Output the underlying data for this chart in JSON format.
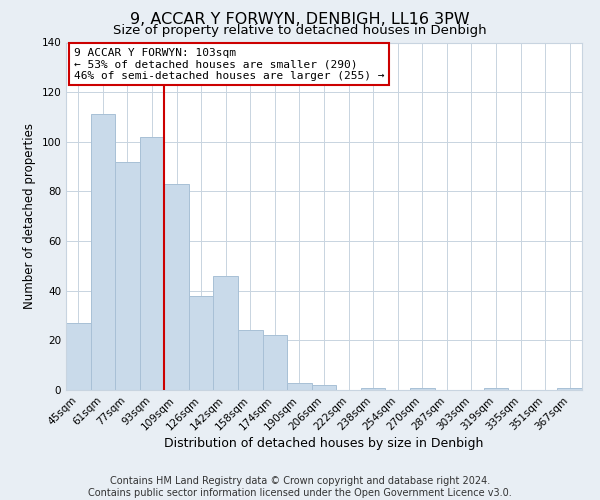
{
  "title": "9, ACCAR Y FORWYN, DENBIGH, LL16 3PW",
  "subtitle": "Size of property relative to detached houses in Denbigh",
  "xlabel": "Distribution of detached houses by size in Denbigh",
  "ylabel": "Number of detached properties",
  "bar_labels": [
    "45sqm",
    "61sqm",
    "77sqm",
    "93sqm",
    "109sqm",
    "126sqm",
    "142sqm",
    "158sqm",
    "174sqm",
    "190sqm",
    "206sqm",
    "222sqm",
    "238sqm",
    "254sqm",
    "270sqm",
    "287sqm",
    "303sqm",
    "319sqm",
    "335sqm",
    "351sqm",
    "367sqm"
  ],
  "bar_values": [
    27,
    111,
    92,
    102,
    83,
    38,
    46,
    24,
    22,
    3,
    2,
    0,
    1,
    0,
    1,
    0,
    0,
    1,
    0,
    0,
    1
  ],
  "bar_color": "#c9daea",
  "bar_edgecolor": "#a8c0d6",
  "red_line_index": 4,
  "ylim": [
    0,
    140
  ],
  "yticks": [
    0,
    20,
    40,
    60,
    80,
    100,
    120,
    140
  ],
  "annotation_title": "9 ACCAR Y FORWYN: 103sqm",
  "annotation_line1": "← 53% of detached houses are smaller (290)",
  "annotation_line2": "46% of semi-detached houses are larger (255) →",
  "annotation_box_color": "#ffffff",
  "annotation_box_edgecolor": "#cc0000",
  "footer_line1": "Contains HM Land Registry data © Crown copyright and database right 2024.",
  "footer_line2": "Contains public sector information licensed under the Open Government Licence v3.0.",
  "background_color": "#e8eef4",
  "plot_background_color": "#ffffff",
  "grid_color": "#c8d4e0",
  "title_fontsize": 11.5,
  "subtitle_fontsize": 9.5,
  "xlabel_fontsize": 9,
  "ylabel_fontsize": 8.5,
  "tick_fontsize": 7.5,
  "footer_fontsize": 7,
  "annotation_fontsize": 8
}
